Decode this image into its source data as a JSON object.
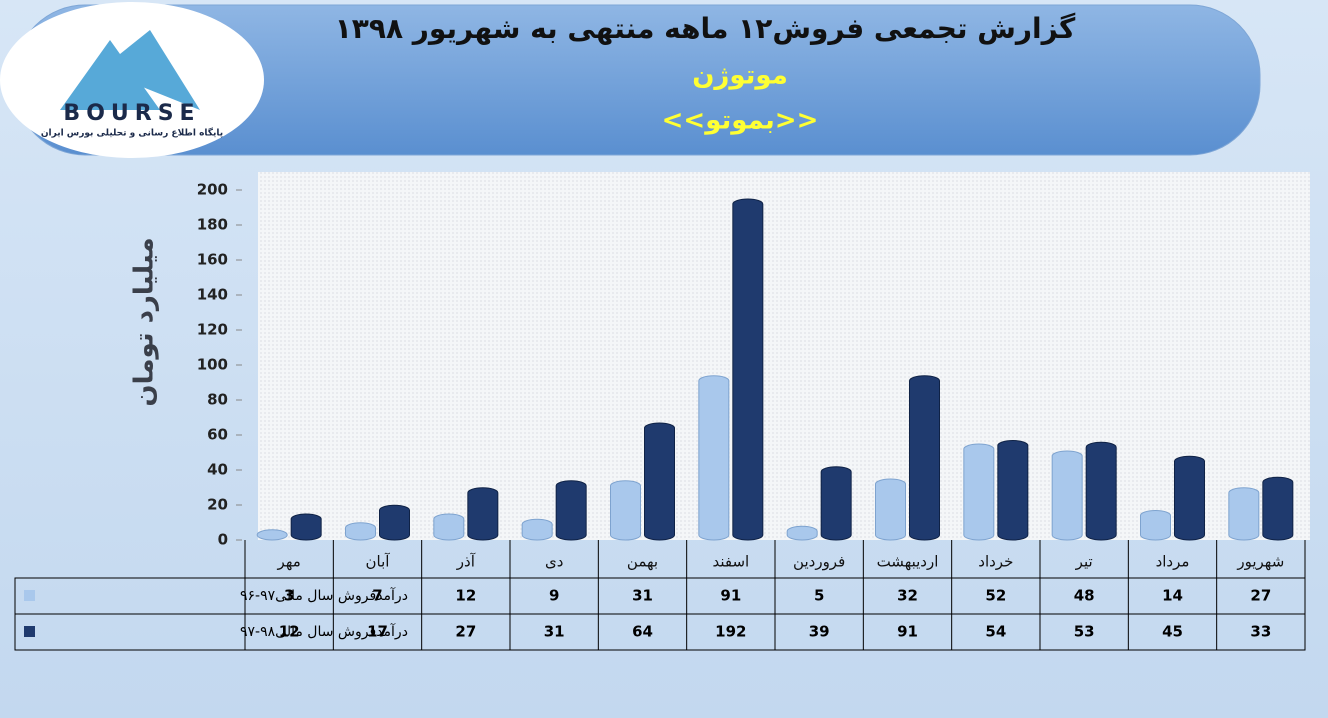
{
  "chart_data": {
    "type": "bar",
    "title": "گزارش تجمعی فروش۱۲ ماهه منتهی به شهریور ۱۳۹۸",
    "subtitle": "موتوژن",
    "symbol": "<<بموتو>>",
    "ylabel": "میلیارد تومان",
    "categories": [
      "مهر",
      "آبان",
      "آذر",
      "دی",
      "بهمن",
      "اسفند",
      "فروردین",
      "اردیبهشت",
      "خرداد",
      "تیر",
      "مرداد",
      "شهریور"
    ],
    "series": [
      {
        "name": "درآمدفروش سال مالی۹۷-۹۶",
        "color": "#a9c8ec",
        "values": [
          3,
          7,
          12,
          9,
          31,
          91,
          5,
          32,
          52,
          48,
          14,
          27
        ]
      },
      {
        "name": "درآمدفروش سال مالی۹۸-۹۷",
        "color": "#1f3a6e",
        "values": [
          12,
          17,
          27,
          31,
          64,
          192,
          39,
          91,
          54,
          53,
          45,
          33
        ]
      }
    ],
    "ylim": [
      0,
      200
    ],
    "yticks": [
      0,
      20,
      40,
      60,
      80,
      100,
      120,
      140,
      160,
      180,
      200
    ],
    "grid": false
  },
  "logo": {
    "name": "BOURSE",
    "tagline": "پایگاه اطلاع رسانی و تحلیلی بورس ایران"
  }
}
